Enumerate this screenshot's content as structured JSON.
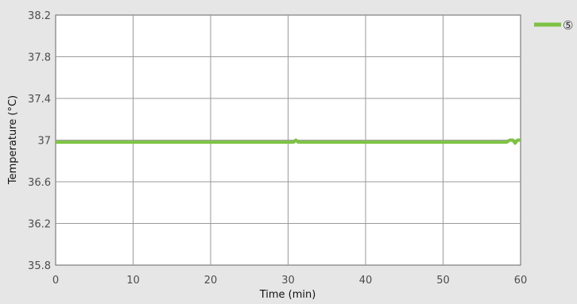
{
  "chart_data": {
    "type": "line",
    "xlabel": "Time (min)",
    "ylabel": "Temperature (°C)",
    "xlim": [
      0,
      60
    ],
    "ylim": [
      35.8,
      38.2
    ],
    "x_ticks": [
      0,
      10,
      20,
      30,
      40,
      50,
      60
    ],
    "y_ticks": [
      35.8,
      36.2,
      36.6,
      37.0,
      37.4,
      37.8,
      38.2
    ],
    "x_tick_labels": [
      "0",
      "10",
      "20",
      "30",
      "40",
      "50",
      "60"
    ],
    "y_tick_labels": [
      "35.8",
      "36.2",
      "36.6",
      "37",
      "37.4",
      "37.8",
      "38.2"
    ],
    "grid": true,
    "legend": "top-right",
    "series": [
      {
        "name": "⑤",
        "color": "#7dc242",
        "x": [
          0,
          10,
          20,
          30,
          30.7,
          31,
          31.3,
          40,
          50,
          58.2,
          58.6,
          59.0,
          59.3,
          59.6,
          60
        ],
        "y": [
          36.98,
          36.98,
          36.98,
          36.98,
          36.98,
          37.0,
          36.98,
          36.98,
          36.98,
          36.98,
          37.0,
          37.0,
          36.97,
          37.0,
          37.0
        ]
      }
    ]
  }
}
